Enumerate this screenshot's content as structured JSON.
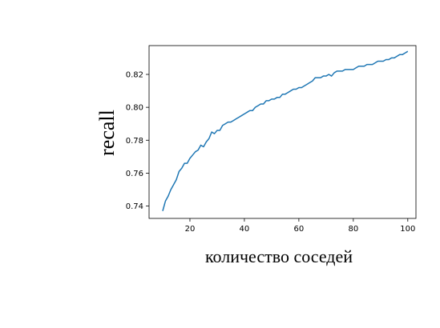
{
  "chart_data": {
    "type": "line",
    "title": "",
    "xlabel": "количество соседей",
    "ylabel": "recall",
    "xlim": [
      5,
      103
    ],
    "ylim": [
      0.7325,
      0.8375
    ],
    "grid": false,
    "legend": "none",
    "line_color": "#1f77b4",
    "xticks": [
      20,
      40,
      60,
      80,
      100
    ],
    "xtick_labels": [
      "20",
      "40",
      "60",
      "80",
      "100"
    ],
    "yticks": [
      0.74,
      0.76,
      0.78,
      0.8,
      0.82
    ],
    "ytick_labels": [
      "0.74",
      "0.76",
      "0.78",
      "0.80",
      "0.82"
    ],
    "series": [
      {
        "x": [
          10,
          11,
          12,
          13,
          14,
          15,
          16,
          17,
          18,
          19,
          20,
          21,
          22,
          23,
          24,
          25,
          26,
          27,
          28,
          29,
          30,
          31,
          32,
          33,
          34,
          35,
          36,
          37,
          38,
          39,
          40,
          41,
          42,
          43,
          44,
          45,
          46,
          47,
          48,
          49,
          50,
          51,
          52,
          53,
          54,
          55,
          56,
          57,
          58,
          59,
          60,
          61,
          62,
          63,
          64,
          65,
          66,
          67,
          68,
          69,
          70,
          71,
          72,
          73,
          74,
          75,
          76,
          77,
          78,
          79,
          80,
          81,
          82,
          83,
          84,
          85,
          86,
          87,
          88,
          89,
          90,
          91,
          92,
          93,
          94,
          95,
          96,
          97,
          98,
          99,
          100
        ],
        "y": [
          0.737,
          0.743,
          0.746,
          0.75,
          0.753,
          0.756,
          0.761,
          0.763,
          0.766,
          0.766,
          0.769,
          0.771,
          0.773,
          0.774,
          0.777,
          0.776,
          0.779,
          0.781,
          0.785,
          0.784,
          0.786,
          0.786,
          0.789,
          0.79,
          0.791,
          0.791,
          0.792,
          0.793,
          0.794,
          0.795,
          0.796,
          0.797,
          0.798,
          0.798,
          0.8,
          0.801,
          0.802,
          0.802,
          0.804,
          0.804,
          0.805,
          0.805,
          0.806,
          0.806,
          0.808,
          0.808,
          0.809,
          0.81,
          0.811,
          0.811,
          0.812,
          0.812,
          0.813,
          0.814,
          0.815,
          0.816,
          0.818,
          0.818,
          0.818,
          0.819,
          0.819,
          0.82,
          0.819,
          0.821,
          0.822,
          0.822,
          0.822,
          0.823,
          0.823,
          0.823,
          0.823,
          0.824,
          0.825,
          0.825,
          0.825,
          0.826,
          0.826,
          0.826,
          0.827,
          0.828,
          0.828,
          0.828,
          0.829,
          0.829,
          0.83,
          0.83,
          0.831,
          0.832,
          0.832,
          0.833,
          0.834
        ]
      }
    ]
  }
}
